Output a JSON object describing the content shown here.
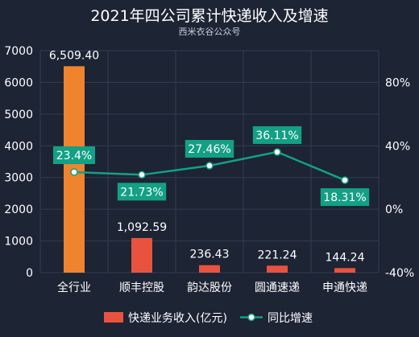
{
  "chart_data": {
    "type": "bar",
    "title": "2021年四公司累计快递收入及增速",
    "subtitle": "西米衣谷公众号",
    "categories": [
      "全行业",
      "顺丰控股",
      "韵达股份",
      "圆通速递",
      "申通快递"
    ],
    "series": [
      {
        "name": "快递业务收入(亿元)",
        "type": "bar",
        "axis": "left",
        "values": [
          6509.4,
          1092.59,
          236.43,
          221.24,
          144.24
        ],
        "labels": [
          "6,509.40",
          "1,092.59",
          "236.43",
          "221.24",
          "144.24"
        ]
      },
      {
        "name": "同比增速",
        "type": "line",
        "axis": "right",
        "values": [
          23.4,
          21.73,
          27.46,
          36.11,
          18.31
        ],
        "labels": [
          "23.4%",
          "21.73%",
          "27.46%",
          "36.11%",
          "18.31%"
        ]
      }
    ],
    "y_left": {
      "min": 0,
      "max": 7000,
      "ticks": [
        "0",
        "1000",
        "2000",
        "3000",
        "4000",
        "5000",
        "6000",
        "7000"
      ]
    },
    "y_right": {
      "min": -40,
      "max": 100,
      "ticks": [
        "-40%",
        "0%",
        "40%",
        "80%"
      ],
      "tick_values": [
        -40,
        0,
        40,
        80
      ]
    },
    "colors": {
      "background": "#1d2434",
      "grid": "#333d52",
      "bar_highlight": "#f0832d",
      "bar": "#e8533f",
      "line": "#13a085",
      "label_box": "#13a085"
    },
    "legend_position": "bottom"
  }
}
